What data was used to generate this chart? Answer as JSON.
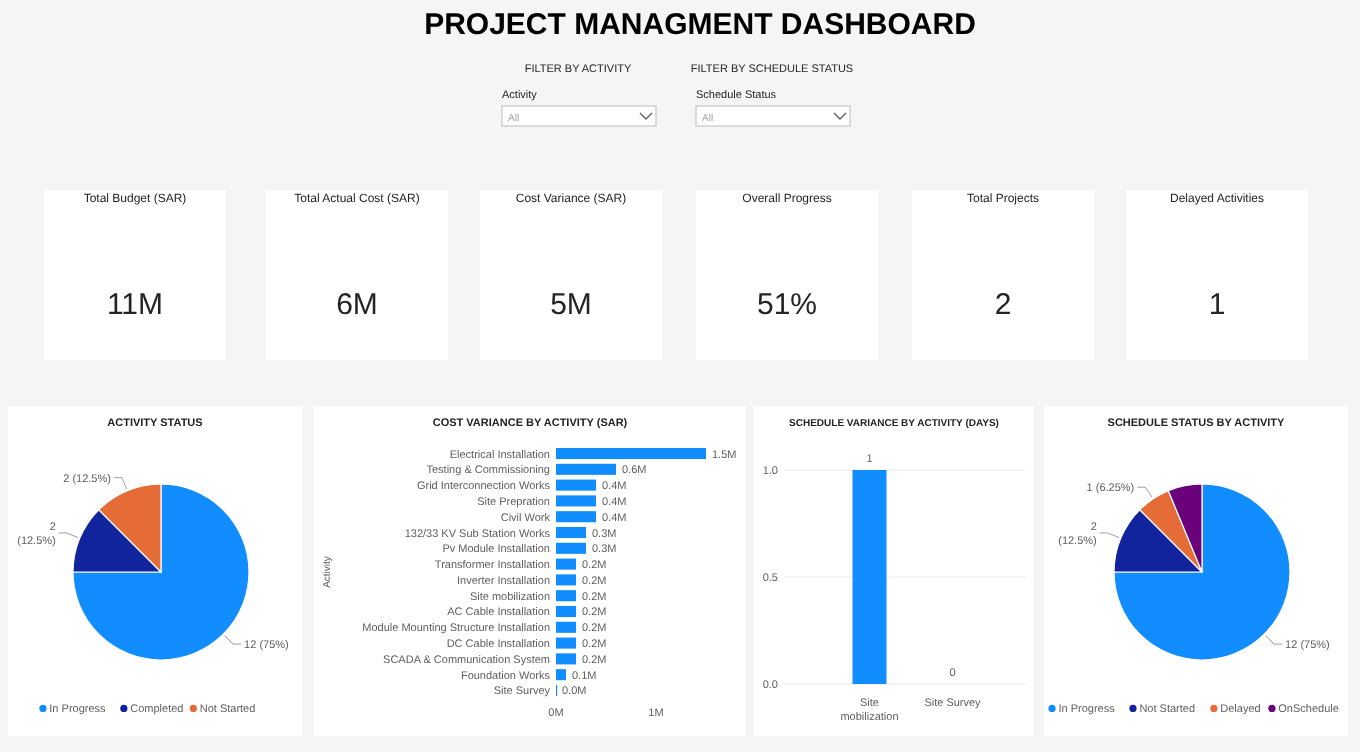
{
  "chart_data": [
    {
      "type": "other",
      "title": "PROJECT MANAGMENT DASHBOARD",
      "categories": [
        "Total Budget (SAR)",
        "Total Actual Cost (SAR)",
        "Cost Variance (SAR)",
        "Overall Progress",
        "Total Projects",
        "Delayed Activities"
      ],
      "value_labels": [
        "11M",
        "6M",
        "5M",
        "51%",
        "2",
        "1"
      ],
      "annotations": [
        "FILTER BY ACTIVITY",
        "Activity",
        "All",
        "FILTER BY SCHEDULE STATUS",
        "Schedule Status",
        "All"
      ]
    },
    {
      "type": "pie",
      "title": "ACTIVITY STATUS",
      "categories": [
        "In Progress",
        "Completed",
        "Not Started"
      ],
      "values": [
        12,
        2,
        2
      ],
      "colors": [
        "#118dff",
        "#12239e",
        "#e66c37"
      ],
      "value_labels": [
        "12 (75%)",
        "2 (12.5%)",
        "2 (12.5%)"
      ],
      "legend": "bottom"
    },
    {
      "type": "bar",
      "orientation": "horizontal",
      "title": "COST VARIANCE BY ACTIVITY (SAR)",
      "ylabel": "Activity",
      "categories": [
        "Electrical Installation",
        "Testing & Commissioning",
        "Grid Interconnection Works",
        "Site Prepration",
        "Civil Work",
        "132/33 KV Sub Station Works",
        "Pv Module Installation",
        "Transformer Installation",
        "Inverter Installation",
        "Site mobilization",
        "AC Cable Installation",
        "Module Mounting Structure Installation",
        "DC Cable Installation",
        "SCADA & Communication System",
        "Foundation Works",
        "Site Survey"
      ],
      "values": [
        1.5,
        0.6,
        0.4,
        0.4,
        0.4,
        0.3,
        0.3,
        0.2,
        0.2,
        0.2,
        0.2,
        0.2,
        0.2,
        0.2,
        0.1,
        0.0
      ],
      "value_labels": [
        "1.5M",
        "0.6M",
        "0.4M",
        "0.4M",
        "0.4M",
        "0.3M",
        "0.3M",
        "0.2M",
        "0.2M",
        "0.2M",
        "0.2M",
        "0.2M",
        "0.2M",
        "0.2M",
        "0.1M",
        "0.0M"
      ],
      "color": "#118dff",
      "xlim": [
        0,
        1.5
      ],
      "xticks": [
        {
          "value": 0,
          "label": "0M"
        },
        {
          "value": 1,
          "label": "1M"
        }
      ]
    },
    {
      "type": "bar",
      "title": "SCHEDULE VARIANCE BY ACTIVITY (DAYS)",
      "categories": [
        "Site mobilization",
        "Site Survey"
      ],
      "values": [
        1,
        0
      ],
      "color": "#118dff",
      "data_labels": true,
      "ylim": [
        0,
        1
      ],
      "yticks": [
        {
          "value": 0,
          "label": "0.0"
        },
        {
          "value": 0.5,
          "label": "0.5"
        },
        {
          "value": 1,
          "label": "1.0"
        }
      ],
      "grid": "y"
    },
    {
      "type": "pie",
      "title": "SCHEDULE STATUS BY ACTIVITY",
      "categories": [
        "In Progress",
        "Not Started",
        "Delayed",
        "OnSchedule"
      ],
      "values": [
        12,
        2,
        1,
        1
      ],
      "colors": [
        "#118dff",
        "#12239e",
        "#e66c37",
        "#6b007b"
      ],
      "value_labels": [
        "12 (75%)",
        "2 (12.5%)",
        "1 (6.25%)",
        null
      ],
      "legend": "bottom"
    }
  ]
}
